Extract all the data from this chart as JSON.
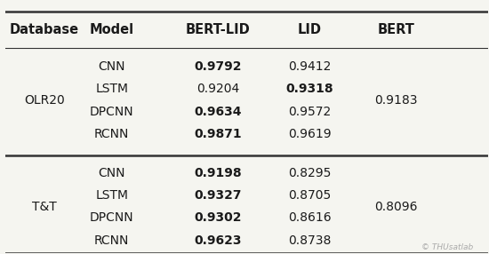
{
  "headers": [
    "Database",
    "Model",
    "BERT-LID",
    "LID",
    "BERT"
  ],
  "header_bold": [
    true,
    true,
    true,
    true,
    true
  ],
  "groups": [
    {
      "database": "OLR20",
      "bert_value": "0.9183",
      "rows": [
        {
          "model": "CNN",
          "bert_lid": "0.9792",
          "lid": "0.9412",
          "bert_lid_bold": true,
          "lid_bold": false
        },
        {
          "model": "LSTM",
          "bert_lid": "0.9204",
          "lid": "0.9318",
          "bert_lid_bold": false,
          "lid_bold": true
        },
        {
          "model": "DPCNN",
          "bert_lid": "0.9634",
          "lid": "0.9572",
          "bert_lid_bold": true,
          "lid_bold": false
        },
        {
          "model": "RCNN",
          "bert_lid": "0.9871",
          "lid": "0.9619",
          "bert_lid_bold": true,
          "lid_bold": false
        }
      ]
    },
    {
      "database": "T&T",
      "bert_value": "0.8096",
      "rows": [
        {
          "model": "CNN",
          "bert_lid": "0.9198",
          "lid": "0.8295",
          "bert_lid_bold": true,
          "lid_bold": false
        },
        {
          "model": "LSTM",
          "bert_lid": "0.9327",
          "lid": "0.8705",
          "bert_lid_bold": true,
          "lid_bold": false
        },
        {
          "model": "DPCNN",
          "bert_lid": "0.9302",
          "lid": "0.8616",
          "bert_lid_bold": true,
          "lid_bold": false
        },
        {
          "model": "RCNN",
          "bert_lid": "0.9623",
          "lid": "0.8738",
          "bert_lid_bold": true,
          "lid_bold": false
        }
      ]
    }
  ],
  "bg_color": "#f5f5f0",
  "text_color": "#1a1a1a",
  "line_color": "#333333",
  "watermark": "© THUsatlab",
  "font_size": 10,
  "header_font_size": 10.5
}
